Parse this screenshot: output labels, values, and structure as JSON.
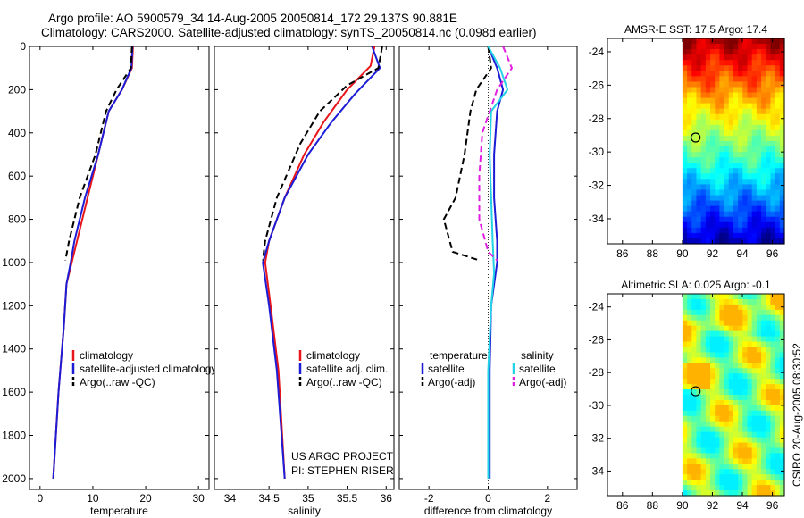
{
  "header": {
    "line1": "Argo profile: AO 5900579_34 14-Aug-2005 20050814_172 29.137S 90.881E",
    "line2": "Climatology: CARS2000. Satellite-adjusted climatology: synTS_20050814.nc (0.098d earlier)"
  },
  "side_text": "CSIRO 20-Aug-2005 08:30:52",
  "credits": [
    "US ARGO PROJECT",
    "PI: STEPHEN RISER"
  ],
  "colors": {
    "clim": "#e8161b",
    "sat": "#1c1cd6",
    "argo": "#000000",
    "sal_sat": "#22d3e6",
    "sal_argo": "#e21ee0"
  },
  "chart_data": [
    {
      "type": "line",
      "xlabel": "temperature",
      "xlim": [
        -2,
        32
      ],
      "ylim": [
        2050,
        0
      ],
      "xticks": [
        0,
        10,
        20,
        30
      ],
      "yticks": [
        0,
        200,
        400,
        600,
        800,
        1000,
        1200,
        1400,
        1600,
        1800,
        2000
      ],
      "legend": {
        "placement": "lower-right",
        "labels": [
          "climatology",
          "satellite-adjusted climatology",
          "Argo(..raw -QC)"
        ]
      },
      "series": [
        {
          "name": "climatology",
          "color_key": "clim",
          "dash": false,
          "x": [
            17.6,
            17.4,
            15.5,
            13,
            11,
            9,
            7,
            6,
            5,
            4.5,
            3.5,
            2.5
          ],
          "y": [
            0,
            100,
            200,
            300,
            500,
            700,
            900,
            1000,
            1100,
            1300,
            1600,
            2000
          ]
        },
        {
          "name": "satellite-adjusted climatology",
          "color_key": "sat",
          "dash": false,
          "x": [
            17.5,
            17.3,
            15.5,
            13,
            11,
            8.5,
            6.5,
            5.8,
            5,
            4.5,
            3.5,
            2.5
          ],
          "y": [
            0,
            100,
            200,
            300,
            500,
            700,
            900,
            1000,
            1100,
            1300,
            1600,
            2000
          ]
        },
        {
          "name": "Argo(..raw -QC)",
          "color_key": "argo",
          "dash": true,
          "x": [
            17.4,
            17.2,
            14.5,
            12.5,
            10.5,
            7.5,
            5.5,
            4.8
          ],
          "y": [
            0,
            100,
            200,
            300,
            500,
            700,
            900,
            990
          ]
        }
      ]
    },
    {
      "type": "line",
      "xlabel": "salinity",
      "xlim": [
        33.8,
        36.1
      ],
      "ylim": [
        2050,
        0
      ],
      "xticks": [
        34,
        34.5,
        35,
        35.5,
        36
      ],
      "xtick_labels": [
        "34",
        "34.5",
        "35",
        "35.5",
        "36"
      ],
      "legend": {
        "placement": "lower-right",
        "labels": [
          "climatology",
          "satellite adj. clim.",
          "Argo(..raw -QC)"
        ]
      },
      "series": [
        {
          "name": "climatology",
          "color_key": "clim",
          "dash": false,
          "x": [
            35.85,
            35.8,
            35.5,
            35.2,
            34.95,
            34.7,
            34.5,
            34.45,
            34.52,
            34.62,
            34.7
          ],
          "y": [
            0,
            90,
            200,
            350,
            500,
            700,
            900,
            1000,
            1200,
            1500,
            2000
          ]
        },
        {
          "name": "satellite adj. clim.",
          "color_key": "sat",
          "dash": false,
          "x": [
            35.82,
            35.92,
            35.6,
            35.3,
            35.0,
            34.7,
            34.5,
            34.42,
            34.5,
            34.6,
            34.7
          ],
          "y": [
            0,
            100,
            220,
            350,
            500,
            700,
            900,
            1000,
            1200,
            1500,
            2000
          ]
        },
        {
          "name": "Argo(..raw -QC)",
          "color_key": "argo",
          "dash": true,
          "x": [
            35.95,
            35.9,
            35.5,
            35.15,
            34.9,
            34.6,
            34.45,
            34.42
          ],
          "y": [
            0,
            100,
            180,
            300,
            450,
            700,
            900,
            990
          ]
        }
      ]
    },
    {
      "type": "line",
      "xlabel": "difference from climatology",
      "xlim": [
        -3,
        3
      ],
      "ylim": [
        2050,
        0
      ],
      "xticks": [
        -2,
        0,
        2
      ],
      "legend": {
        "placement": "lower-center",
        "groups": [
          {
            "title": "temperature",
            "labels": [
              "satellite",
              "Argo(-adj)"
            ]
          },
          {
            "title": "salinity",
            "labels": [
              "satellite",
              "Argo(-adj)"
            ]
          }
        ]
      },
      "series": [
        {
          "name": "temperature satellite",
          "color_key": "sat",
          "dash": false,
          "x": [
            0,
            0.3,
            0.5,
            0.3,
            0.2,
            0.2,
            0.3,
            0.3,
            0.1,
            0.05,
            0.05
          ],
          "y": [
            0,
            100,
            200,
            300,
            500,
            700,
            900,
            1000,
            1200,
            1500,
            2000
          ]
        },
        {
          "name": "temperature Argo(-adj)",
          "color_key": "argo",
          "dash": true,
          "x": [
            0,
            0.1,
            -0.4,
            -0.6,
            -0.8,
            -1.1,
            -1.5,
            -1.2,
            -0.3
          ],
          "y": [
            0,
            100,
            200,
            300,
            500,
            700,
            800,
            950,
            990
          ]
        },
        {
          "name": "salinity satellite",
          "color_key": "sal_sat",
          "dash": false,
          "x": [
            0,
            0.4,
            0.65,
            0.1,
            0.05,
            0.1,
            0.15,
            0.2,
            0.1,
            0,
            0
          ],
          "y": [
            0,
            100,
            200,
            300,
            500,
            700,
            900,
            1050,
            1200,
            1500,
            2000
          ]
        },
        {
          "name": "salinity Argo(-adj)",
          "color_key": "sal_argo",
          "dash": true,
          "x": [
            0.5,
            0.8,
            0.3,
            -0.2,
            -0.3,
            -0.3,
            0,
            0.3
          ],
          "y": [
            0,
            100,
            200,
            400,
            600,
            800,
            950,
            990
          ]
        }
      ]
    },
    {
      "type": "heatmap",
      "title": "AMSR-E SST: 17.5 Argo: 17.4",
      "xlim": [
        85,
        96.8
      ],
      "ylim": [
        -35.5,
        -23.2
      ],
      "xticks": [
        86,
        88,
        90,
        92,
        94,
        96
      ],
      "yticks": [
        -24,
        -26,
        -28,
        -30,
        -32,
        -34
      ],
      "data_xrange": [
        90,
        96.8
      ],
      "profile_marker": {
        "lon": 90.881,
        "lat": -29.137
      },
      "value_bands": [
        {
          "lat_from": -23.2,
          "lat_to": -25.3,
          "value": 0.95
        },
        {
          "lat_from": -25.3,
          "lat_to": -27.5,
          "value": 0.78
        },
        {
          "lat_from": -27.5,
          "lat_to": -29.0,
          "value": 0.6
        },
        {
          "lat_from": -29.0,
          "lat_to": -30.8,
          "value": 0.45
        },
        {
          "lat_from": -30.8,
          "lat_to": -32.8,
          "value": 0.28
        },
        {
          "lat_from": -32.8,
          "lat_to": -35.5,
          "value": 0.1
        }
      ]
    },
    {
      "type": "heatmap",
      "title": "Altimetric SLA: 0.025 Argo: -0.1",
      "xlim": [
        85,
        96.8
      ],
      "ylim": [
        -35.5,
        -23.2
      ],
      "xticks": [
        86,
        88,
        90,
        92,
        94,
        96
      ],
      "yticks": [
        -24,
        -26,
        -28,
        -30,
        -32,
        -34
      ],
      "data_xrange": [
        90,
        96.8
      ],
      "profile_marker": {
        "lon": 90.881,
        "lat": -29.137
      }
    }
  ]
}
